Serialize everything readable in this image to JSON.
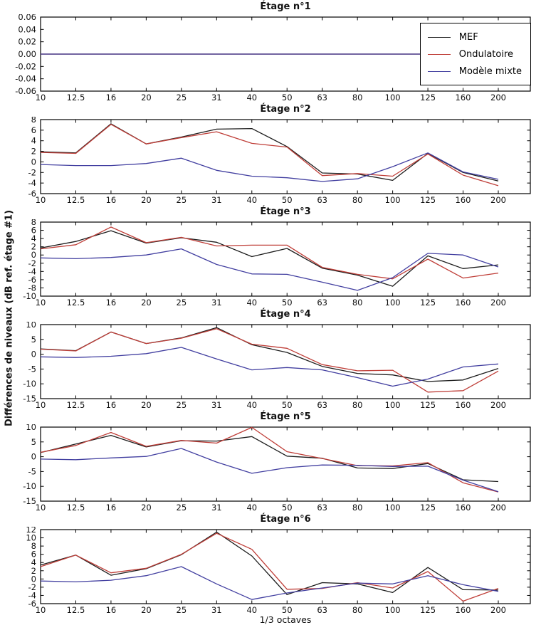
{
  "figure": {
    "ylabel": "Différences de niveaux (dB ref. étage #1)",
    "xlabel": "1/3 octaves",
    "legend": {
      "position": "top-right-of-first-subplot",
      "entries": [
        {
          "label": "MEF",
          "color": "#1c1c1c"
        },
        {
          "label": "Ondulatoire",
          "color": "#bf3e38"
        },
        {
          "label": "Modèle mixte",
          "color": "#423fa0"
        }
      ]
    }
  },
  "chart_data": [
    {
      "type": "line",
      "title": "Étage n°1",
      "categories": [
        "10",
        "12.5",
        "16",
        "20",
        "25",
        "31",
        "40",
        "50",
        "63",
        "80",
        "100",
        "125",
        "160",
        "200"
      ],
      "ylim": [
        -0.06,
        0.06
      ],
      "ytick_step": 0.02,
      "y_decimals": 2,
      "grid": false,
      "series": [
        {
          "name": "MEF",
          "values": [
            0,
            0,
            0,
            0,
            0,
            0,
            0,
            0,
            0,
            0,
            0,
            0,
            0,
            0
          ]
        },
        {
          "name": "Ondulatoire",
          "values": [
            0,
            0,
            0,
            0,
            0,
            0,
            0,
            0,
            0,
            0,
            0,
            0,
            0,
            0
          ]
        },
        {
          "name": "Modèle mixte",
          "values": [
            0,
            0,
            0,
            0,
            0,
            0,
            0,
            0,
            0,
            0,
            0,
            0,
            0,
            0
          ]
        }
      ]
    },
    {
      "type": "line",
      "title": "Étage n°2",
      "categories": [
        "10",
        "12.5",
        "16",
        "20",
        "25",
        "31",
        "40",
        "50",
        "63",
        "80",
        "100",
        "125",
        "160",
        "200"
      ],
      "ylim": [
        -6,
        8
      ],
      "ytick_step": 2,
      "y_decimals": 0,
      "grid": false,
      "series": [
        {
          "name": "MEF",
          "values": [
            1.9,
            1.7,
            7.2,
            3.4,
            4.7,
            6.2,
            6.3,
            2.9,
            -2.1,
            -2.3,
            -3.5,
            1.6,
            -2.0,
            -3.6
          ]
        },
        {
          "name": "Ondulatoire",
          "values": [
            1.8,
            1.6,
            7.1,
            3.4,
            4.6,
            5.7,
            3.5,
            2.8,
            -2.6,
            -2.2,
            -2.7,
            1.5,
            -2.5,
            -4.5
          ]
        },
        {
          "name": "Modèle mixte",
          "values": [
            -0.5,
            -0.7,
            -0.7,
            -0.3,
            0.7,
            -1.6,
            -2.7,
            -3.0,
            -3.7,
            -3.2,
            -0.9,
            1.7,
            -1.9,
            -3.3
          ]
        }
      ]
    },
    {
      "type": "line",
      "title": "Étage n°3",
      "categories": [
        "10",
        "12.5",
        "16",
        "20",
        "25",
        "31",
        "40",
        "50",
        "63",
        "80",
        "100",
        "125",
        "160",
        "200"
      ],
      "ylim": [
        -10,
        8
      ],
      "ytick_step": 2,
      "y_decimals": 0,
      "grid": false,
      "series": [
        {
          "name": "MEF",
          "values": [
            1.7,
            3.3,
            5.9,
            2.9,
            4.2,
            3.1,
            -0.4,
            1.6,
            -3.2,
            -4.9,
            -7.6,
            -0.2,
            -3.3,
            -2.4
          ]
        },
        {
          "name": "Ondulatoire",
          "values": [
            1.5,
            2.5,
            6.8,
            3.0,
            4.3,
            2.2,
            2.4,
            2.4,
            -3.0,
            -4.7,
            -5.8,
            -1.0,
            -5.6,
            -4.4
          ]
        },
        {
          "name": "Modèle mixte",
          "values": [
            -0.7,
            -0.9,
            -0.6,
            0.0,
            1.5,
            -2.3,
            -4.6,
            -4.7,
            -6.6,
            -8.6,
            -5.5,
            0.4,
            0.0,
            -2.9
          ]
        }
      ]
    },
    {
      "type": "line",
      "title": "Étage n°4",
      "categories": [
        "10",
        "12.5",
        "16",
        "20",
        "25",
        "31",
        "40",
        "50",
        "63",
        "80",
        "100",
        "125",
        "160",
        "200"
      ],
      "ylim": [
        -15,
        10
      ],
      "ytick_step": 5,
      "y_decimals": 0,
      "grid": false,
      "series": [
        {
          "name": "MEF",
          "values": [
            1.8,
            1.2,
            7.5,
            3.6,
            5.5,
            9.0,
            3.2,
            0.6,
            -4.1,
            -6.5,
            -7.0,
            -9.2,
            -8.7,
            -4.8
          ]
        },
        {
          "name": "Ondulatoire",
          "values": [
            1.7,
            1.1,
            7.5,
            3.6,
            5.4,
            8.6,
            3.4,
            2.0,
            -3.5,
            -5.6,
            -5.4,
            -12.8,
            -12.3,
            -5.7
          ]
        },
        {
          "name": "Modèle mixte",
          "values": [
            -0.9,
            -1.1,
            -0.7,
            0.2,
            2.3,
            -1.6,
            -5.3,
            -4.5,
            -5.3,
            -7.9,
            -10.8,
            -8.4,
            -4.3,
            -3.3
          ]
        }
      ]
    },
    {
      "type": "line",
      "title": "Étage n°5",
      "categories": [
        "10",
        "12.5",
        "16",
        "20",
        "25",
        "31",
        "40",
        "50",
        "63",
        "80",
        "100",
        "125",
        "160",
        "200"
      ],
      "ylim": [
        -15,
        10
      ],
      "ytick_step": 5,
      "y_decimals": 0,
      "grid": false,
      "series": [
        {
          "name": "MEF",
          "values": [
            1.4,
            4.3,
            7.2,
            3.3,
            5.4,
            5.3,
            6.8,
            0.2,
            -0.5,
            -3.8,
            -4.0,
            -2.3,
            -7.8,
            -8.4
          ]
        },
        {
          "name": "Ondulatoire",
          "values": [
            1.5,
            3.8,
            8.2,
            3.5,
            5.5,
            4.6,
            9.9,
            1.7,
            -0.6,
            -3.0,
            -3.1,
            -2.0,
            -8.8,
            -11.9
          ]
        },
        {
          "name": "Modèle mixte",
          "values": [
            -0.8,
            -1.0,
            -0.4,
            0.1,
            2.8,
            -1.8,
            -5.6,
            -3.7,
            -2.8,
            -2.9,
            -3.3,
            -3.2,
            -7.9,
            -11.8
          ]
        }
      ]
    },
    {
      "type": "line",
      "title": "Étage n°6",
      "categories": [
        "10",
        "12.5",
        "16",
        "20",
        "25",
        "31",
        "40",
        "50",
        "63",
        "80",
        "100",
        "125",
        "160",
        "200"
      ],
      "ylim": [
        -6,
        12
      ],
      "ytick_step": 2,
      "y_decimals": 0,
      "grid": false,
      "series": [
        {
          "name": "MEF",
          "values": [
            3.4,
            5.8,
            0.9,
            2.5,
            5.9,
            11.4,
            5.6,
            -3.8,
            -0.9,
            -1.2,
            -3.3,
            2.8,
            -2.6,
            -2.7
          ]
        },
        {
          "name": "Ondulatoire",
          "values": [
            3.0,
            5.8,
            1.5,
            2.6,
            6.0,
            11.1,
            7.2,
            -2.5,
            -2.3,
            -0.9,
            -2.2,
            1.8,
            -5.4,
            -2.3
          ]
        },
        {
          "name": "Modèle mixte",
          "values": [
            -0.5,
            -0.7,
            -0.3,
            0.8,
            3.0,
            -1.2,
            -5.0,
            -3.4,
            -2.2,
            -1.0,
            -1.2,
            0.8,
            -1.4,
            -3.0
          ]
        }
      ]
    }
  ]
}
